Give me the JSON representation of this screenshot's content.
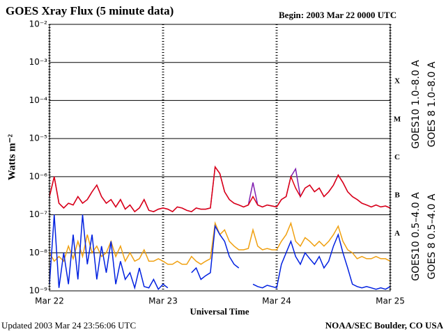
{
  "chart_data": {
    "type": "line",
    "title": "GOES Xray Flux (5 minute data)",
    "subtitle": "Begin:  2003 Mar 22 0000 UTC",
    "y_label": "Watts m⁻²",
    "x_label": "Universal Time",
    "footer_left": "Updated 2003 Mar 24 23:56:06 UTC",
    "footer_right": "NOAA/SEC Boulder, CO USA",
    "class_labels": [
      "X",
      "M",
      "C",
      "B",
      "A"
    ],
    "log_y": true,
    "grid": true,
    "xlim": [
      0,
      72
    ],
    "xticks": [
      {
        "value": 0,
        "label": "Mar 22"
      },
      {
        "value": 24,
        "label": "Mar 23"
      },
      {
        "value": 48,
        "label": "Mar 24"
      },
      {
        "value": 72,
        "label": "Mar 25"
      }
    ],
    "ylim": [
      1e-09,
      0.01
    ],
    "yticks": [
      {
        "value": 0.01,
        "label": "10⁻²"
      },
      {
        "value": 0.001,
        "label": "10⁻³"
      },
      {
        "value": 0.0001,
        "label": "10⁻⁴"
      },
      {
        "value": 1e-05,
        "label": "10⁻⁵"
      },
      {
        "value": 1e-06,
        "label": "10⁻⁶"
      },
      {
        "value": 1e-07,
        "label": "10⁻⁷"
      },
      {
        "value": 1e-08,
        "label": "10⁻⁸"
      },
      {
        "value": 1e-09,
        "label": "10⁻⁹"
      }
    ],
    "x": [
      0,
      1,
      2,
      3,
      4,
      5,
      6,
      7,
      8,
      9,
      10,
      11,
      12,
      13,
      14,
      15,
      16,
      17,
      18,
      19,
      20,
      21,
      22,
      23,
      24,
      25,
      26,
      27,
      28,
      29,
      30,
      31,
      32,
      33,
      34,
      35,
      36,
      37,
      38,
      39,
      40,
      41,
      42,
      43,
      44,
      45,
      46,
      47,
      48,
      49,
      50,
      51,
      52,
      53,
      54,
      55,
      56,
      57,
      58,
      59,
      60,
      61,
      62,
      63,
      64,
      65,
      66,
      67,
      68,
      69,
      70,
      71,
      72
    ],
    "series": [
      {
        "name": "GOES10 1.0–8.0 A",
        "color": "#8020b0",
        "values": [
          3e-07,
          1e-06,
          2e-07,
          1.5e-07,
          2e-07,
          1.8e-07,
          3e-07,
          2e-07,
          2.5e-07,
          4e-07,
          6e-07,
          3e-07,
          2e-07,
          2.5e-07,
          1.6e-07,
          2.5e-07,
          1.4e-07,
          1.8e-07,
          1.2e-07,
          1.5e-07,
          2.5e-07,
          1.3e-07,
          1.2e-07,
          1.4e-07,
          1.5e-07,
          1.4e-07,
          1.2e-07,
          1.6e-07,
          1.5e-07,
          1.3e-07,
          1.2e-07,
          1.5e-07,
          1.4e-07,
          1.4e-07,
          1.5e-07,
          1.8e-06,
          1.2e-06,
          4e-07,
          2.5e-07,
          2e-07,
          1.8e-07,
          1.6e-07,
          1.8e-07,
          7e-07,
          1.8e-07,
          1.6e-07,
          1.8e-07,
          1.7e-07,
          1.6e-07,
          2.5e-07,
          3e-07,
          1e-06,
          1.6e-06,
          3e-07,
          5e-07,
          6e-07,
          4e-07,
          5e-07,
          3e-07,
          4e-07,
          6e-07,
          1.1e-06,
          7e-07,
          4e-07,
          3e-07,
          2.5e-07,
          2e-07,
          1.8e-07,
          1.6e-07,
          1.8e-07,
          1.6e-07,
          1.7e-07,
          1.5e-07
        ]
      },
      {
        "name": "GOES 8 1.0–8.0 A",
        "color": "#e00010",
        "values": [
          3e-07,
          1e-06,
          2e-07,
          1.5e-07,
          2e-07,
          1.8e-07,
          3e-07,
          2e-07,
          2.5e-07,
          4e-07,
          6e-07,
          3e-07,
          2e-07,
          2.5e-07,
          1.6e-07,
          2.5e-07,
          1.4e-07,
          1.8e-07,
          1.2e-07,
          1.5e-07,
          2.5e-07,
          1.3e-07,
          1.2e-07,
          1.4e-07,
          1.5e-07,
          1.4e-07,
          1.2e-07,
          1.6e-07,
          1.5e-07,
          1.3e-07,
          1.2e-07,
          1.5e-07,
          1.4e-07,
          1.4e-07,
          1.5e-07,
          1.8e-06,
          1.2e-06,
          4e-07,
          2.5e-07,
          2e-07,
          1.8e-07,
          1.6e-07,
          1.8e-07,
          3e-07,
          1.8e-07,
          1.6e-07,
          1.8e-07,
          1.7e-07,
          1.6e-07,
          2.5e-07,
          3e-07,
          1e-06,
          5e-07,
          3e-07,
          5e-07,
          6e-07,
          4e-07,
          5e-07,
          3e-07,
          4e-07,
          6e-07,
          1.1e-06,
          7e-07,
          4e-07,
          3e-07,
          2.5e-07,
          2e-07,
          1.8e-07,
          1.6e-07,
          1.8e-07,
          1.6e-07,
          1.7e-07,
          1.5e-07
        ]
      },
      {
        "name": "GOES10 0.5–4.0 A",
        "color": "#f0a010",
        "values": [
          1e-08,
          6e-09,
          8e-09,
          6e-09,
          1.5e-08,
          7e-09,
          2e-08,
          8e-09,
          3e-08,
          1e-08,
          1.5e-08,
          8e-09,
          1e-08,
          2e-08,
          8e-09,
          1.5e-08,
          6e-09,
          1e-08,
          6e-09,
          7e-09,
          1.2e-08,
          6e-09,
          6e-09,
          7e-09,
          6e-09,
          5e-09,
          5e-09,
          6e-09,
          5e-09,
          5e-09,
          8e-09,
          6e-09,
          5e-09,
          6e-09,
          7e-09,
          6e-08,
          3e-08,
          4e-08,
          2e-08,
          1.5e-08,
          1.2e-08,
          1.2e-08,
          1.3e-08,
          4e-08,
          1.5e-08,
          1.2e-08,
          1.3e-08,
          1.2e-08,
          1.2e-08,
          2e-08,
          3e-08,
          6e-08,
          2e-08,
          1.5e-08,
          2.5e-08,
          2e-08,
          1.5e-08,
          2e-08,
          1.5e-08,
          2e-08,
          3e-08,
          5e-08,
          2e-08,
          1.2e-08,
          1e-08,
          7e-09,
          8e-09,
          7e-09,
          7e-09,
          8e-09,
          7e-09,
          7e-09,
          6e-09
        ]
      },
      {
        "name": "GOES 8 0.5–4.0 A",
        "color": "#0020e0",
        "values": [
          1.5e-09,
          1e-07,
          1.2e-09,
          1e-08,
          1.5e-09,
          3e-08,
          2e-09,
          1e-07,
          5e-09,
          3e-08,
          2e-09,
          1.5e-08,
          3e-09,
          2e-08,
          1.5e-09,
          6e-09,
          2e-09,
          3e-09,
          1.2e-09,
          4e-09,
          1.3e-09,
          1.2e-09,
          2e-09,
          1.1e-09,
          1.5e-09,
          1.2e-09,
          null,
          null,
          null,
          null,
          3e-09,
          4e-09,
          2e-09,
          2.5e-09,
          3e-09,
          5e-08,
          3e-08,
          2e-08,
          8e-09,
          5e-09,
          4e-09,
          null,
          null,
          1.5e-09,
          1.3e-09,
          1.2e-09,
          1.4e-09,
          1.3e-09,
          1.2e-09,
          5e-09,
          1e-08,
          2e-08,
          8e-09,
          5e-09,
          1e-08,
          7e-09,
          5e-09,
          8e-09,
          4e-09,
          6e-09,
          1.5e-08,
          3e-08,
          1e-08,
          4e-09,
          1.5e-09,
          1.3e-09,
          1.2e-09,
          1.3e-09,
          1.2e-09,
          1.1e-09,
          1.2e-09,
          1.1e-09,
          1.3e-09
        ]
      }
    ]
  }
}
